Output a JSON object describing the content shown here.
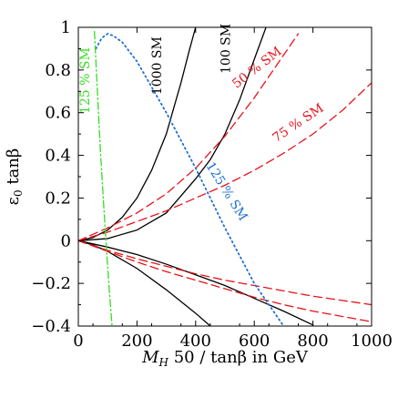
{
  "chart_data": {
    "type": "line",
    "xlabel": "M_H 50 / tanβ in GeV",
    "xlabel_parts": {
      "sym": "M",
      "sub": "H",
      "rest": " 50 / tanβ in GeV"
    },
    "ylabel": "ε0 tanβ",
    "ylabel_parts": {
      "eps": "ε",
      "sub": "0",
      "rest": " tanβ"
    },
    "xlim": [
      0,
      1000
    ],
    "ylim": [
      -0.4,
      1.0
    ],
    "xticks": [
      0,
      200,
      400,
      600,
      800,
      1000
    ],
    "xtick_labels": [
      "0",
      "200",
      "400",
      "600",
      "800",
      "1000"
    ],
    "yticks": [
      -0.4,
      -0.2,
      0,
      0.2,
      0.4,
      0.6,
      0.8,
      1
    ],
    "ytick_labels": [
      "−0.4",
      "−0.2",
      "0",
      "0.2",
      "0.4",
      "0.6",
      "0.8",
      "1"
    ],
    "grid": false,
    "colors": {
      "black": "#000000",
      "red": "#e8121a",
      "blue": "#1f6fd1",
      "green": "#33dd22"
    },
    "series": [
      {
        "key": "1000-upper",
        "color": "#000000",
        "style": "solid",
        "x": [
          0,
          50,
          100,
          150,
          200,
          250,
          300,
          350,
          380,
          400
        ],
        "y": [
          0,
          0.015,
          0.05,
          0.11,
          0.2,
          0.33,
          0.5,
          0.74,
          0.9,
          1.0
        ]
      },
      {
        "key": "100-upper",
        "color": "#000000",
        "style": "solid",
        "x": [
          0,
          100,
          200,
          300,
          400,
          450,
          500,
          550,
          600,
          640
        ],
        "y": [
          0,
          0.01,
          0.05,
          0.13,
          0.29,
          0.38,
          0.5,
          0.66,
          0.85,
          1.0
        ]
      },
      {
        "key": "1000-lower",
        "color": "#000000",
        "style": "solid",
        "x": [
          0,
          50,
          100,
          200,
          300,
          400,
          450
        ],
        "y": [
          0,
          -0.02,
          -0.05,
          -0.13,
          -0.23,
          -0.34,
          -0.4
        ]
      },
      {
        "key": "100-lower",
        "color": "#000000",
        "style": "solid",
        "x": [
          0,
          100,
          200,
          300,
          400,
          500,
          600,
          700,
          800
        ],
        "y": [
          0,
          -0.03,
          -0.065,
          -0.11,
          -0.16,
          -0.21,
          -0.27,
          -0.33,
          -0.395
        ]
      },
      {
        "key": "50-upper",
        "color": "#e8121a",
        "style": "dashed",
        "x": [
          0,
          100,
          200,
          300,
          400,
          500,
          600,
          700,
          750
        ],
        "y": [
          0,
          0.06,
          0.13,
          0.22,
          0.34,
          0.49,
          0.67,
          0.87,
          0.97
        ]
      },
      {
        "key": "75-upper",
        "color": "#e8121a",
        "style": "dashed",
        "x": [
          0,
          100,
          200,
          300,
          400,
          500,
          600,
          700,
          800,
          900,
          1000
        ],
        "y": [
          0,
          0.04,
          0.09,
          0.14,
          0.2,
          0.26,
          0.33,
          0.41,
          0.5,
          0.61,
          0.74
        ]
      },
      {
        "key": "50-lower",
        "color": "#e8121a",
        "style": "dashed",
        "x": [
          0,
          100,
          200,
          300,
          400,
          500,
          600,
          700,
          800,
          900,
          1000
        ],
        "y": [
          0,
          -0.05,
          -0.1,
          -0.145,
          -0.185,
          -0.225,
          -0.265,
          -0.3,
          -0.33,
          -0.355,
          -0.38
        ]
      },
      {
        "key": "75-lower",
        "color": "#e8121a",
        "style": "dashed",
        "x": [
          0,
          100,
          200,
          300,
          400,
          500,
          600,
          700,
          800,
          900,
          1000
        ],
        "y": [
          0,
          -0.045,
          -0.085,
          -0.12,
          -0.155,
          -0.185,
          -0.21,
          -0.235,
          -0.26,
          -0.28,
          -0.3
        ]
      },
      {
        "key": "125-blue",
        "color": "#1f6fd1",
        "style": "dotted",
        "x": [
          60,
          80,
          100,
          120,
          150,
          200,
          300,
          400,
          500,
          600,
          700
        ],
        "y": [
          0.9,
          0.95,
          0.97,
          0.96,
          0.93,
          0.84,
          0.6,
          0.34,
          0.06,
          -0.2,
          -0.4
        ]
      },
      {
        "key": "125-green",
        "color": "#33dd22",
        "style": "dashdot",
        "x": [
          55,
          65,
          75,
          85,
          95,
          105,
          115
        ],
        "y": [
          0.98,
          0.7,
          0.43,
          0.2,
          -0.02,
          -0.22,
          -0.4
        ]
      }
    ],
    "annotations": [
      {
        "text": "1000 SM",
        "color": "#000000",
        "x": 270,
        "y": 0.82,
        "angle": -90
      },
      {
        "text": "100 SM",
        "color": "#000000",
        "x": 505,
        "y": 0.9,
        "angle": -90
      },
      {
        "text": "50 % SM",
        "color": "#e8121a",
        "x": 610,
        "y": 0.81,
        "angle": -38
      },
      {
        "text": "75 % SM",
        "color": "#e8121a",
        "x": 750,
        "y": 0.55,
        "angle": -34
      },
      {
        "text": "125 % SM",
        "color": "#1f6fd1",
        "x": 505,
        "y": 0.23,
        "angle": 58
      },
      {
        "text": "125 % SM",
        "color": "#33dd22",
        "x": 25,
        "y": 0.75,
        "angle": -90
      }
    ]
  }
}
